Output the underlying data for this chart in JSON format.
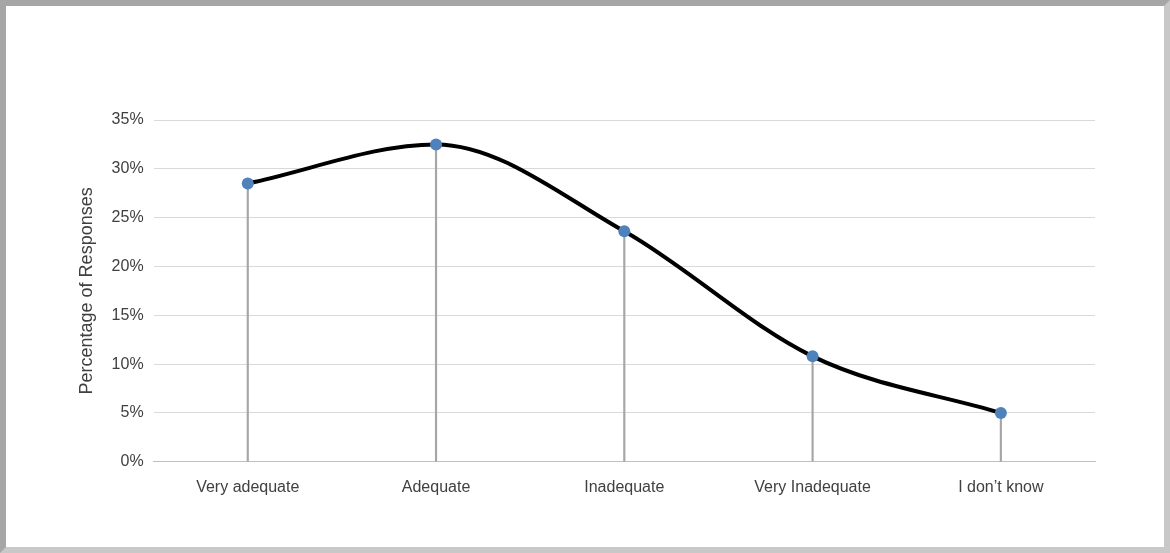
{
  "chart_data": {
    "type": "line",
    "ylabel": "Percentage of Responses",
    "categories": [
      "Very adequate",
      "Adequate",
      "Inadequate",
      "Very Inadequate",
      "I don’t know"
    ],
    "series": [
      {
        "type": "lollipop",
        "color": "#4f81bd",
        "values": [
          28.5,
          32.5,
          23.6,
          10.8,
          5.0
        ]
      },
      {
        "color": "#000000",
        "marker": "none",
        "values": [
          28.5,
          32.5,
          23.6,
          10.8,
          5.0
        ]
      }
    ],
    "ylim": [
      0,
      35
    ],
    "yticks": [
      {
        "value": 0,
        "label": "0%"
      },
      {
        "value": 5,
        "label": "5%"
      },
      {
        "value": 10,
        "label": "10%"
      },
      {
        "value": 15,
        "label": "15%"
      },
      {
        "value": 20,
        "label": "20%"
      },
      {
        "value": 25,
        "label": "25%"
      },
      {
        "value": 30,
        "label": "30%"
      },
      {
        "value": 35,
        "label": "35%"
      }
    ],
    "grid": "y",
    "legend": false,
    "marker": "circle",
    "line_style": "solid"
  }
}
